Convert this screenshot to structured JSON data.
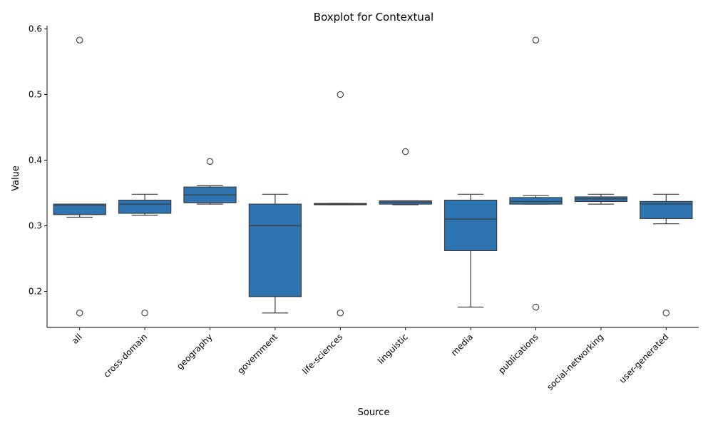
{
  "chart_data": {
    "type": "boxplot",
    "title": "Boxplot for Contextual",
    "xlabel": "Source",
    "ylabel": "Value",
    "ylim": [
      0.145,
      0.605
    ],
    "yticks": [
      0.2,
      0.3,
      0.4,
      0.5,
      0.6
    ],
    "yticklabels": [
      "0.2",
      "0.3",
      "0.4",
      "0.5",
      "0.6"
    ],
    "box_color": "#2e74b0",
    "line_color": "#3d3d3d",
    "categories": [
      "all",
      "cross-domain",
      "geography",
      "government",
      "life-sciences",
      "linguistic",
      "media",
      "publications",
      "social-networking",
      "user-generated"
    ],
    "boxes": [
      {
        "label": "all",
        "whislo": 0.313,
        "q1": 0.317,
        "med": 0.331,
        "q3": 0.333,
        "whishi": 0.333,
        "fliers": [
          0.583,
          0.167
        ]
      },
      {
        "label": "cross-domain",
        "whislo": 0.316,
        "q1": 0.319,
        "med": 0.333,
        "q3": 0.339,
        "whishi": 0.348,
        "fliers": [
          0.167
        ]
      },
      {
        "label": "geography",
        "whislo": 0.333,
        "q1": 0.335,
        "med": 0.347,
        "q3": 0.359,
        "whishi": 0.361,
        "fliers": [
          0.398
        ]
      },
      {
        "label": "government",
        "whislo": 0.167,
        "q1": 0.192,
        "med": 0.3,
        "q3": 0.333,
        "whishi": 0.348,
        "fliers": []
      },
      {
        "label": "life-sciences",
        "whislo": 0.332,
        "q1": 0.332,
        "med": 0.333,
        "q3": 0.334,
        "whishi": 0.334,
        "fliers": [
          0.5,
          0.167
        ]
      },
      {
        "label": "linguistic",
        "whislo": 0.332,
        "q1": 0.333,
        "med": 0.336,
        "q3": 0.338,
        "whishi": 0.338,
        "fliers": [
          0.413
        ]
      },
      {
        "label": "media",
        "whislo": 0.176,
        "q1": 0.262,
        "med": 0.31,
        "q3": 0.339,
        "whishi": 0.348,
        "fliers": []
      },
      {
        "label": "publications",
        "whislo": 0.333,
        "q1": 0.333,
        "med": 0.337,
        "q3": 0.343,
        "whishi": 0.346,
        "fliers": [
          0.583,
          0.176
        ]
      },
      {
        "label": "social-networking",
        "whislo": 0.333,
        "q1": 0.337,
        "med": 0.341,
        "q3": 0.344,
        "whishi": 0.348,
        "fliers": []
      },
      {
        "label": "user-generated",
        "whislo": 0.303,
        "q1": 0.311,
        "med": 0.333,
        "q3": 0.337,
        "whishi": 0.348,
        "fliers": [
          0.167
        ]
      }
    ]
  }
}
